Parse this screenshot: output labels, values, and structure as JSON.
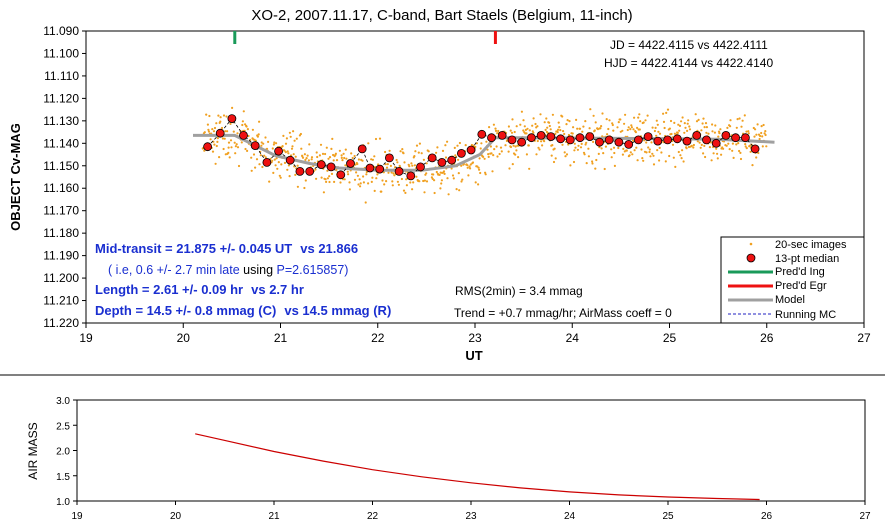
{
  "title": "XO-2, 2007.11.17, C-band, Bart Staels (Belgium, 11-inch)",
  "jd_line": "JD = 4422.4115 vs 4422.4111",
  "hjd_line": "HJD = 4422.4144 vs 4422.4140",
  "annotations": {
    "mid_transit": "Mid-transit = 21.875 +/- 0.045 UT",
    "mid_transit_vs": "vs 21.866",
    "late_pre": "( i.e, 0.6 +/- 2.7 min late ",
    "late_using": "using",
    "late_period": " P=2.615857)",
    "length": "Length = 2.61 +/- 0.09 hr",
    "length_vs": "vs 2.7 hr",
    "depth": "Depth = 14.5 +/- 0.8 mmag (C)",
    "depth_vs": "vs 14.5  mmag (R)",
    "rms": "RMS(2min) = 3.4 mmag",
    "trend": "Trend = +0.7 mmag/hr; AirMass coeff = 0"
  },
  "legend": {
    "raw": "20-sec images",
    "median": "13-pt median",
    "ingress": "Pred'd Ing",
    "egress": "Pred'd Egr",
    "model": "Model",
    "running": "Running MC"
  },
  "colors": {
    "raw": "#f0a020",
    "median_fill": "#ee1111",
    "ingress": "#1a9a5a",
    "egress": "#ee1111",
    "model": "#a0a0a0",
    "running": "#2020c0",
    "airmass": "#cc0000"
  },
  "chart_data": [
    {
      "type": "scatter",
      "ylabel": "OBJECT Cv-MAG",
      "xlabel": "UT",
      "xlim": [
        19,
        27
      ],
      "ylim": [
        11.09,
        11.22
      ],
      "y_inverted": true,
      "x_ticks": [
        "19",
        "20",
        "21",
        "22",
        "23",
        "24",
        "25",
        "26",
        "27"
      ],
      "y_ticks": [
        "11.090",
        "11.100",
        "11.110",
        "11.120",
        "11.130",
        "11.140",
        "11.150",
        "11.160",
        "11.170",
        "11.180",
        "11.190",
        "11.200",
        "11.210",
        "11.220"
      ],
      "predicted_ingress": 20.53,
      "predicted_egress": 23.21,
      "model": {
        "x": [
          20.1,
          20.53,
          20.95,
          21.3,
          21.6,
          22.0,
          22.45,
          22.8,
          23.05,
          23.21,
          23.5,
          24.5,
          25.5,
          26.08
        ],
        "y": [
          11.1365,
          11.1365,
          11.1455,
          11.149,
          11.151,
          11.152,
          11.152,
          11.15,
          11.145,
          11.1375,
          11.1375,
          11.1378,
          11.1382,
          11.1395
        ]
      },
      "median_13pt": {
        "x": [
          20.25,
          20.38,
          20.5,
          20.62,
          20.74,
          20.86,
          20.98,
          21.1,
          21.2,
          21.3,
          21.42,
          21.52,
          21.62,
          21.72,
          21.84,
          21.92,
          22.02,
          22.12,
          22.22,
          22.34,
          22.44,
          22.56,
          22.66,
          22.76,
          22.86,
          22.96,
          23.07,
          23.17,
          23.28,
          23.38,
          23.48,
          23.58,
          23.68,
          23.78,
          23.88,
          23.98,
          24.08,
          24.18,
          24.28,
          24.38,
          24.48,
          24.58,
          24.68,
          24.78,
          24.88,
          24.98,
          25.08,
          25.18,
          25.28,
          25.38,
          25.48,
          25.58,
          25.68,
          25.78,
          25.88
        ],
        "y": [
          11.1415,
          11.1355,
          11.129,
          11.1365,
          11.141,
          11.1485,
          11.1435,
          11.1475,
          11.1525,
          11.1525,
          11.1495,
          11.1505,
          11.154,
          11.149,
          11.1425,
          11.151,
          11.1515,
          11.1465,
          11.1525,
          11.1545,
          11.1505,
          11.1465,
          11.1485,
          11.1475,
          11.1445,
          11.143,
          11.136,
          11.1375,
          11.1365,
          11.1385,
          11.1395,
          11.1375,
          11.1365,
          11.137,
          11.138,
          11.1385,
          11.1375,
          11.137,
          11.1395,
          11.1385,
          11.1395,
          11.1405,
          11.1385,
          11.137,
          11.139,
          11.1385,
          11.138,
          11.139,
          11.1365,
          11.1385,
          11.14,
          11.1365,
          11.1375,
          11.1375,
          11.1425
        ]
      },
      "raw_points": {
        "x_range": [
          20.2,
          26.0
        ],
        "scatter_mmag": 7
      },
      "legend_placement": "bottom-right"
    },
    {
      "type": "line",
      "ylabel": "AIR MASS",
      "xlim": [
        19,
        27
      ],
      "ylim": [
        1.0,
        3.0
      ],
      "x_ticks": [
        "19",
        "20",
        "21",
        "22",
        "23",
        "24",
        "25",
        "26",
        "27"
      ],
      "y_ticks": [
        "1.0",
        "1.5",
        "2.0",
        "2.5",
        "3.0"
      ],
      "x": [
        20.2,
        20.5,
        21.0,
        21.5,
        22.0,
        22.5,
        23.0,
        23.5,
        24.0,
        24.5,
        25.0,
        25.5,
        25.93
      ],
      "y": [
        2.33,
        2.2,
        1.98,
        1.79,
        1.62,
        1.48,
        1.36,
        1.26,
        1.18,
        1.12,
        1.08,
        1.05,
        1.03
      ]
    }
  ]
}
